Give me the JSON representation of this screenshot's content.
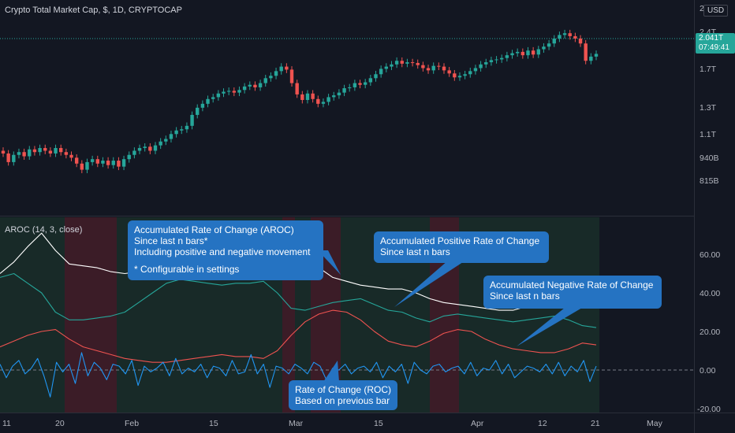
{
  "header": {
    "main_title": "Crypto Total Market Cap, $, 1D, CRYPTOCAP",
    "indicator_title": "AROC (14, 3, close)"
  },
  "price_axis": {
    "currency": "USD",
    "labels": [
      "2.4T",
      "1.7T",
      "1.3T",
      "1.1T",
      "940B",
      "815B"
    ],
    "current_price": "2.041T",
    "countdown": "07:49:41",
    "top_partial": "2"
  },
  "indicator_axis": {
    "labels": [
      "60.00",
      "40.00",
      "20.00",
      "0.00",
      "-20.00"
    ]
  },
  "time_axis": {
    "labels": [
      "11",
      "20",
      "Feb",
      "15",
      "Mar",
      "15",
      "Apr",
      "12",
      "21",
      "May"
    ]
  },
  "callouts": [
    {
      "lines": [
        "Accumulated Rate of Change (AROC)",
        "Since last n bars*",
        "Including positive and negative movement",
        "",
        "* Configurable in settings"
      ]
    },
    {
      "lines": [
        "Accumulated Positive Rate of Change",
        "Since last n bars"
      ]
    },
    {
      "lines": [
        "Accumulated Negative Rate of Change",
        "Since last n bars"
      ]
    },
    {
      "lines": [
        "Rate of Change (ROC)",
        "Based on previous bar"
      ]
    }
  ],
  "colors": {
    "background": "#131722",
    "up": "#26a69a",
    "down": "#ef5350",
    "aroc": "#ffffff",
    "positive": "#26a69a",
    "negative": "#ef5350",
    "roc": "#2196f3",
    "callout": "#2573c2",
    "bg_green": "#1e3a2e",
    "bg_red": "#4a1f2a"
  },
  "chart_data": [
    {
      "type": "candlestick",
      "title": "Crypto Total Market Cap, $, 1D, CRYPTOCAP",
      "y_scale": "log",
      "y_ticks": [
        "2.4T",
        "1.7T",
        "1.3T",
        "1.1T",
        "940B",
        "815B"
      ],
      "x_ticks": [
        "11",
        "20",
        "Feb",
        "15",
        "Mar",
        "15",
        "Apr",
        "12",
        "21",
        "May"
      ],
      "last_value": "2.041T",
      "close_values_T": [
        0.99,
        0.93,
        0.98,
        1.0,
        0.97,
        1.02,
        1.0,
        1.03,
        1.01,
        0.99,
        1.03,
        1.0,
        0.98,
        0.96,
        0.92,
        0.88,
        0.93,
        0.95,
        0.92,
        0.94,
        0.91,
        0.94,
        0.9,
        0.95,
        0.98,
        1.01,
        1.03,
        1.04,
        1.01,
        1.05,
        1.08,
        1.1,
        1.14,
        1.17,
        1.18,
        1.21,
        1.31,
        1.38,
        1.42,
        1.47,
        1.49,
        1.53,
        1.55,
        1.56,
        1.54,
        1.57,
        1.61,
        1.63,
        1.6,
        1.65,
        1.71,
        1.74,
        1.8,
        1.86,
        1.82,
        1.65,
        1.52,
        1.46,
        1.53,
        1.47,
        1.42,
        1.44,
        1.49,
        1.51,
        1.54,
        1.59,
        1.6,
        1.65,
        1.63,
        1.66,
        1.71,
        1.76,
        1.83,
        1.86,
        1.89,
        1.94,
        1.9,
        1.92,
        1.91,
        1.88,
        1.84,
        1.81,
        1.87,
        1.86,
        1.81,
        1.77,
        1.72,
        1.74,
        1.76,
        1.8,
        1.84,
        1.89,
        1.92,
        1.95,
        1.96,
        1.98,
        2.02,
        2.05,
        2.07,
        2.02,
        2.09,
        2.03,
        2.11,
        2.15,
        2.2,
        2.28,
        2.34,
        2.37,
        2.32,
        2.28,
        2.2,
        1.94,
        2.0,
        2.04
      ]
    },
    {
      "type": "line",
      "title": "AROC (14, 3, close)",
      "ylim": [
        -20,
        70
      ],
      "y_ticks": [
        60,
        40,
        20,
        0,
        -20
      ],
      "series": [
        {
          "name": "Accumulated Rate of Change (AROC)",
          "values": [
            50,
            56,
            64,
            71,
            62,
            55,
            54,
            53,
            51,
            50,
            51,
            52,
            53,
            52,
            51,
            55,
            60,
            57,
            55,
            54,
            56,
            58,
            55,
            53,
            48,
            46,
            44,
            43,
            42,
            42,
            40,
            37,
            35,
            34,
            33,
            32,
            31,
            31,
            33,
            34,
            35,
            36,
            35,
            37
          ]
        },
        {
          "name": "Accumulated Positive Rate of Change",
          "values": [
            48,
            50,
            45,
            40,
            30,
            26,
            26,
            27,
            28,
            30,
            35,
            40,
            45,
            47,
            46,
            45,
            44,
            45,
            45,
            46,
            40,
            32,
            31,
            33,
            35,
            36,
            37,
            34,
            31,
            30,
            27,
            25,
            28,
            29,
            28,
            27,
            26,
            25,
            26,
            27,
            28,
            26,
            23,
            22
          ]
        },
        {
          "name": "Accumulated Negative Rate of Change",
          "values": [
            12,
            15,
            18,
            20,
            21,
            16,
            12,
            10,
            8,
            6,
            5,
            4,
            4,
            5,
            6,
            7,
            8,
            7,
            7,
            6,
            10,
            18,
            25,
            29,
            31,
            30,
            26,
            20,
            15,
            13,
            12,
            15,
            19,
            21,
            20,
            16,
            13,
            11,
            10,
            9,
            9,
            11,
            14,
            13
          ]
        },
        {
          "name": "Rate of Change (ROC)",
          "values": [
            3,
            -4,
            2,
            5,
            -2,
            1,
            6,
            -3,
            -14,
            4,
            -1,
            3,
            -7,
            9,
            -3,
            4,
            1,
            -5,
            3,
            2,
            -2,
            5,
            -8,
            2,
            -1,
            1,
            4,
            -3,
            6,
            -2,
            1,
            -1,
            3,
            -4,
            2,
            1,
            -3,
            5,
            -2,
            -1,
            8,
            -2,
            3,
            -9,
            2,
            1,
            -2,
            3,
            1,
            -2,
            4,
            2,
            -5,
            1,
            0,
            3,
            -2,
            1,
            2,
            -1,
            4,
            -4,
            2,
            -1,
            3,
            -7,
            4,
            0,
            -2,
            2,
            3,
            -1,
            1,
            2,
            -2,
            4,
            -3,
            1,
            0,
            5,
            -2,
            3,
            -4,
            -1,
            2,
            1,
            -1,
            3,
            -2,
            4,
            -3,
            2,
            -1,
            5,
            -6,
            2
          ]
        }
      ]
    }
  ]
}
